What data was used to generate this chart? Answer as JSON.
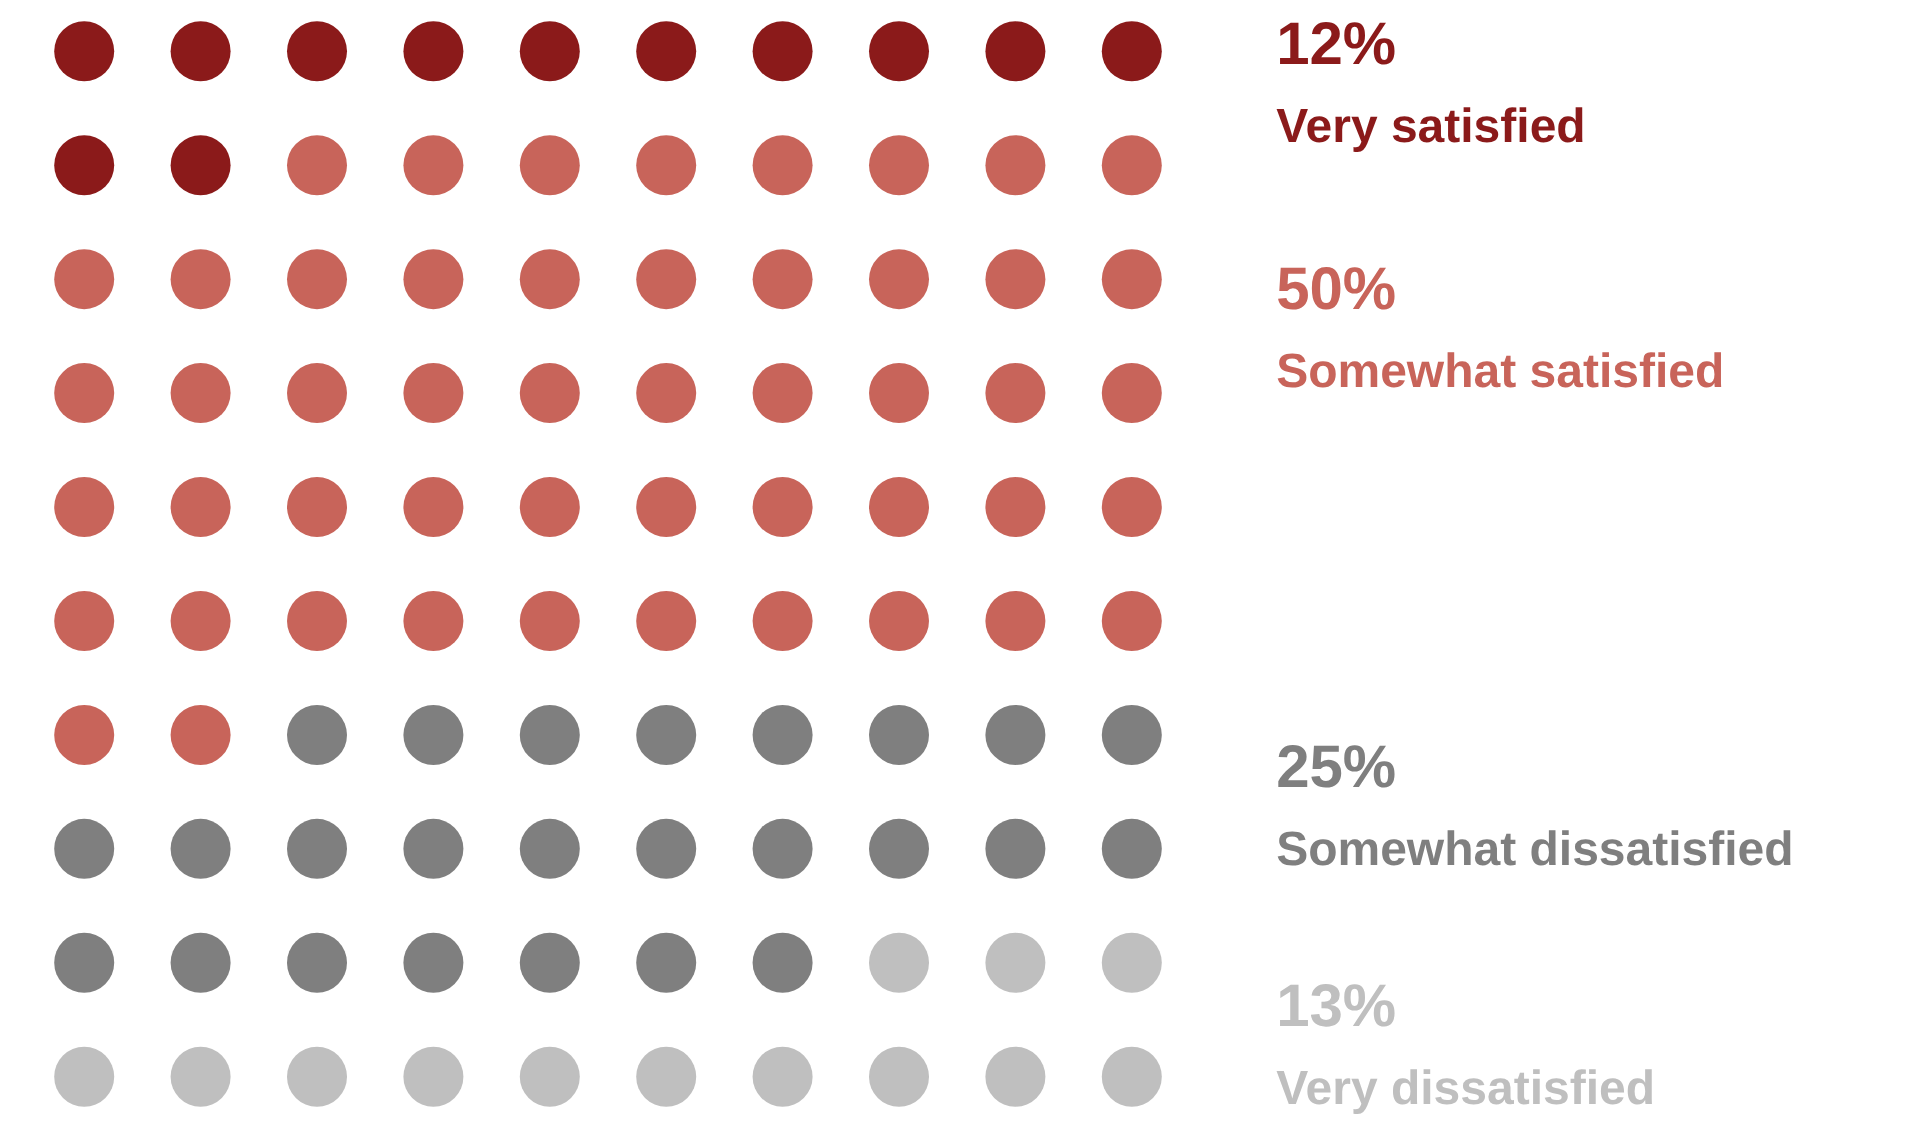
{
  "chart_data": {
    "type": "other",
    "categories": [
      "Very satisfied",
      "Somewhat satisfied",
      "Somewhat dissatisfied",
      "Very dissatisfied"
    ],
    "values": [
      12,
      50,
      25,
      13
    ],
    "value_labels": [
      "12%",
      "50%",
      "25%",
      "13%"
    ],
    "colors": [
      "#8b1a1a",
      "#c8645a",
      "#7f7f7f",
      "#bfbfbf"
    ]
  }
}
